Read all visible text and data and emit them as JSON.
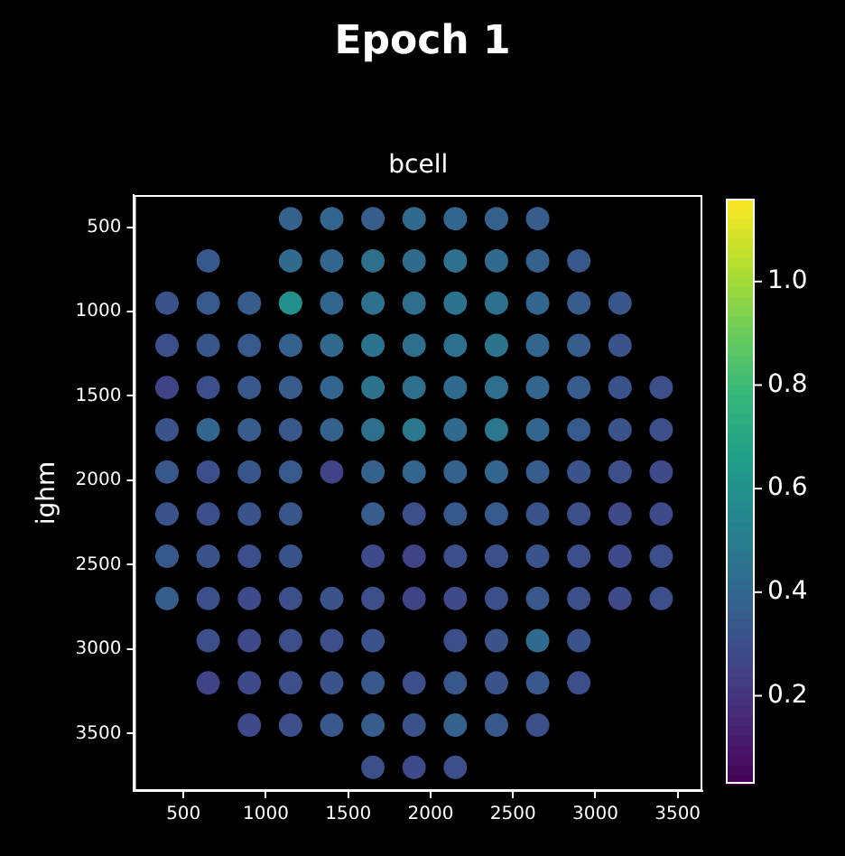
{
  "chart_data": {
    "type": "scatter",
    "title": "Epoch 1",
    "subtitle": "bcell",
    "ylabel": "ighm",
    "marker": "circle",
    "grid": false,
    "legend": false,
    "xlim": [
      200,
      3650
    ],
    "xticks": [
      500,
      1000,
      1500,
      2000,
      2500,
      3000,
      3500
    ],
    "ylim": [
      3840,
      310
    ],
    "yticks": [
      500,
      1000,
      1500,
      2000,
      2500,
      3000,
      3500
    ],
    "clim": [
      0.03,
      1.16
    ],
    "cticks": [
      0.2,
      0.4,
      0.6,
      0.8,
      {
        "value": 1,
        "label": "1.0"
      }
    ],
    "series": [
      {
        "x": [
          1150,
          1400,
          1650,
          1900,
          2150,
          2400,
          2650,
          650,
          1150,
          1400,
          1650,
          1900,
          2150,
          2400,
          2650,
          2900,
          400,
          650,
          900,
          1150,
          1400,
          1650,
          1900,
          2150,
          2400,
          2650,
          2900,
          3150,
          400,
          650,
          900,
          1150,
          1400,
          1650,
          1900,
          2150,
          2400,
          2650,
          2900,
          3150,
          400,
          650,
          900,
          1150,
          1400,
          1650,
          1900,
          2150,
          2400,
          2650,
          2900,
          3150,
          3400,
          400,
          650,
          900,
          1150,
          1400,
          1650,
          1900,
          2150,
          2400,
          2650,
          2900,
          3150,
          3400,
          400,
          650,
          900,
          1150,
          1400,
          1650,
          1900,
          2150,
          2400,
          2650,
          2900,
          3150,
          3400,
          400,
          650,
          900,
          1150,
          1650,
          1900,
          2150,
          2400,
          2650,
          2900,
          3150,
          3400,
          400,
          650,
          900,
          1150,
          1650,
          1900,
          2150,
          2400,
          2650,
          2900,
          3150,
          3400,
          400,
          650,
          900,
          1150,
          1400,
          1650,
          1900,
          2150,
          2400,
          2650,
          2900,
          3150,
          3400,
          650,
          900,
          1150,
          1400,
          1650,
          2150,
          2400,
          2650,
          2900,
          650,
          900,
          1150,
          1400,
          1650,
          1900,
          2150,
          2400,
          2650,
          2900,
          900,
          1150,
          1400,
          1650,
          1900,
          2150,
          2400,
          2650,
          1650,
          1900,
          2150
        ],
        "values": [
          450,
          450,
          450,
          450,
          450,
          450,
          450,
          700,
          700,
          700,
          700,
          700,
          700,
          700,
          700,
          700,
          950,
          950,
          950,
          950,
          950,
          950,
          950,
          950,
          950,
          950,
          950,
          950,
          1200,
          1200,
          1200,
          1200,
          1200,
          1200,
          1200,
          1200,
          1200,
          1200,
          1200,
          1200,
          1450,
          1450,
          1450,
          1450,
          1450,
          1450,
          1450,
          1450,
          1450,
          1450,
          1450,
          1450,
          1450,
          1700,
          1700,
          1700,
          1700,
          1700,
          1700,
          1700,
          1700,
          1700,
          1700,
          1700,
          1700,
          1700,
          1950,
          1950,
          1950,
          1950,
          1950,
          1950,
          1950,
          1950,
          1950,
          1950,
          1950,
          1950,
          1950,
          2200,
          2200,
          2200,
          2200,
          2200,
          2200,
          2200,
          2200,
          2200,
          2200,
          2200,
          2200,
          2450,
          2450,
          2450,
          2450,
          2450,
          2450,
          2450,
          2450,
          2450,
          2450,
          2450,
          2450,
          2700,
          2700,
          2700,
          2700,
          2700,
          2700,
          2700,
          2700,
          2700,
          2700,
          2700,
          2700,
          2700,
          2950,
          2950,
          2950,
          2950,
          2950,
          2950,
          2950,
          2950,
          2950,
          3200,
          3200,
          3200,
          3200,
          3200,
          3200,
          3200,
          3200,
          3200,
          3200,
          3450,
          3450,
          3450,
          3450,
          3450,
          3450,
          3450,
          3450,
          3700,
          3700,
          3700
        ],
        "cvalues": [
          0.38,
          0.4,
          0.36,
          0.42,
          0.4,
          0.38,
          0.36,
          0.34,
          0.42,
          0.4,
          0.44,
          0.42,
          0.45,
          0.42,
          0.38,
          0.34,
          0.32,
          0.35,
          0.36,
          0.6,
          0.4,
          0.45,
          0.44,
          0.46,
          0.45,
          0.4,
          0.36,
          0.33,
          0.3,
          0.33,
          0.35,
          0.38,
          0.42,
          0.46,
          0.44,
          0.45,
          0.46,
          0.4,
          0.36,
          0.32,
          0.26,
          0.3,
          0.34,
          0.36,
          0.4,
          0.46,
          0.44,
          0.42,
          0.44,
          0.4,
          0.36,
          0.32,
          0.3,
          0.32,
          0.4,
          0.36,
          0.34,
          0.38,
          0.44,
          0.48,
          0.42,
          0.48,
          0.4,
          0.35,
          0.32,
          0.3,
          0.34,
          0.3,
          0.33,
          0.35,
          0.26,
          0.38,
          0.4,
          0.38,
          0.4,
          0.36,
          0.32,
          0.3,
          0.28,
          0.32,
          0.3,
          0.32,
          0.33,
          0.36,
          0.3,
          0.34,
          0.35,
          0.32,
          0.3,
          0.28,
          0.28,
          0.34,
          0.32,
          0.3,
          0.32,
          0.28,
          0.26,
          0.3,
          0.3,
          0.32,
          0.3,
          0.28,
          0.3,
          0.36,
          0.3,
          0.28,
          0.3,
          0.32,
          0.3,
          0.26,
          0.28,
          0.3,
          0.34,
          0.3,
          0.28,
          0.3,
          0.3,
          0.28,
          0.3,
          0.3,
          0.32,
          0.3,
          0.32,
          0.42,
          0.32,
          0.26,
          0.28,
          0.3,
          0.32,
          0.34,
          0.3,
          0.34,
          0.32,
          0.34,
          0.3,
          0.28,
          0.3,
          0.34,
          0.36,
          0.32,
          0.38,
          0.34,
          0.3,
          0.3,
          0.28,
          0.3
        ]
      }
    ]
  }
}
